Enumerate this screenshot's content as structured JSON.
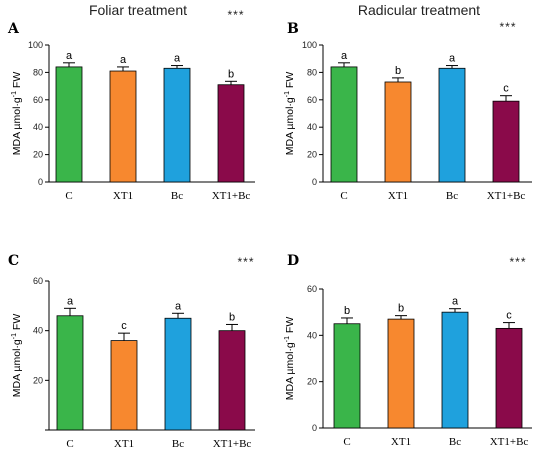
{
  "panels": [
    {
      "letter": "A",
      "title": "Foliar treatment",
      "stars": "***",
      "ylabel_main": "MDA µmol·g",
      "ylabel_sup": "-1",
      "ylabel_tail": " FW"
    },
    {
      "letter": "B",
      "title": "Radicular treatment",
      "stars": "***",
      "ylabel_main": "MDA µmol·g",
      "ylabel_sup": "-1",
      "ylabel_tail": " FW"
    },
    {
      "letter": "C",
      "title": "",
      "stars": "***",
      "ylabel_main": "MDA µmol·g",
      "ylabel_sup": "-1",
      "ylabel_tail": " FW"
    },
    {
      "letter": "D",
      "title": "",
      "stars": "***",
      "ylabel_main": "MDA µmol·g",
      "ylabel_sup": "-1",
      "ylabel_tail": " FW"
    }
  ],
  "chart_data": [
    {
      "type": "bar",
      "categories": [
        "C",
        "XT1",
        "Bc",
        "XT1+Bc"
      ],
      "values": [
        84,
        81,
        83,
        71
      ],
      "errors": [
        3,
        3,
        2,
        2.5
      ],
      "significance": [
        "a",
        "a",
        "a",
        "b"
      ],
      "colors": [
        "#3ab54a",
        "#f7882f",
        "#1fa1dd",
        "#8a0a4a"
      ],
      "ylim": [
        0,
        100
      ],
      "yticks": [
        "0",
        "20",
        "40",
        "60",
        "80",
        "100"
      ],
      "title": "Foliar treatment",
      "ylabel": "MDA µmol·g-1 FW",
      "grid": false
    },
    {
      "type": "bar",
      "categories": [
        "C",
        "XT1",
        "Bc",
        "XT1+Bc"
      ],
      "values": [
        84,
        73,
        83,
        59
      ],
      "errors": [
        3,
        3,
        2,
        4
      ],
      "significance": [
        "a",
        "b",
        "a",
        "c"
      ],
      "colors": [
        "#3ab54a",
        "#f7882f",
        "#1fa1dd",
        "#8a0a4a"
      ],
      "ylim": [
        0,
        100
      ],
      "yticks": [
        "0",
        "20",
        "40",
        "60",
        "80",
        "100"
      ],
      "title": "Radicular treatment",
      "ylabel": "MDA µmol·g-1 FW",
      "grid": false
    },
    {
      "type": "bar",
      "categories": [
        "C",
        "XT1",
        "Bc",
        "XT1+Bc"
      ],
      "values": [
        46,
        36,
        45,
        40
      ],
      "errors": [
        3,
        3,
        2,
        2.5
      ],
      "significance": [
        "a",
        "c",
        "a",
        "b"
      ],
      "colors": [
        "#3ab54a",
        "#f7882f",
        "#1fa1dd",
        "#8a0a4a"
      ],
      "ylim": [
        0,
        60
      ],
      "yticks": [
        "",
        "20",
        "40",
        "60"
      ],
      "title": "",
      "ylabel": "MDA µmol·g-1 FW",
      "grid": false
    },
    {
      "type": "bar",
      "categories": [
        "C",
        "XT1",
        "Bc",
        "XT1+Bc"
      ],
      "values": [
        45,
        47,
        50,
        43
      ],
      "errors": [
        2.5,
        1.5,
        1.5,
        2.5
      ],
      "significance": [
        "b",
        "b",
        "a",
        "c"
      ],
      "colors": [
        "#3ab54a",
        "#f7882f",
        "#1fa1dd",
        "#8a0a4a"
      ],
      "ylim": [
        0,
        60
      ],
      "yticks": [
        "0",
        "20",
        "40",
        "60"
      ],
      "title": "",
      "ylabel": "MDA µmol·g-1 FW",
      "grid": false
    }
  ]
}
